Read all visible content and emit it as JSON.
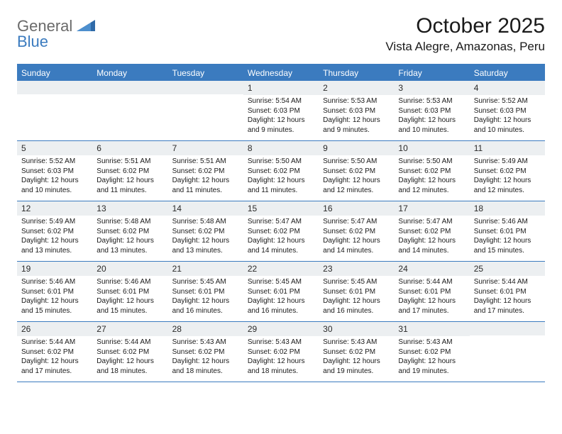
{
  "logo": {
    "general": "General",
    "blue": "Blue"
  },
  "title": "October 2025",
  "location": "Vista Alegre, Amazonas, Peru",
  "colors": {
    "brand_blue": "#3b7bbf",
    "header_gray": "#eceff1",
    "text": "#1a1a1a",
    "logo_gray": "#6a6a6a"
  },
  "weekdays": [
    "Sunday",
    "Monday",
    "Tuesday",
    "Wednesday",
    "Thursday",
    "Friday",
    "Saturday"
  ],
  "weeks": [
    [
      {
        "num": "",
        "lines": []
      },
      {
        "num": "",
        "lines": []
      },
      {
        "num": "",
        "lines": []
      },
      {
        "num": "1",
        "lines": [
          "Sunrise: 5:54 AM",
          "Sunset: 6:03 PM",
          "Daylight: 12 hours and 9 minutes."
        ]
      },
      {
        "num": "2",
        "lines": [
          "Sunrise: 5:53 AM",
          "Sunset: 6:03 PM",
          "Daylight: 12 hours and 9 minutes."
        ]
      },
      {
        "num": "3",
        "lines": [
          "Sunrise: 5:53 AM",
          "Sunset: 6:03 PM",
          "Daylight: 12 hours and 10 minutes."
        ]
      },
      {
        "num": "4",
        "lines": [
          "Sunrise: 5:52 AM",
          "Sunset: 6:03 PM",
          "Daylight: 12 hours and 10 minutes."
        ]
      }
    ],
    [
      {
        "num": "5",
        "lines": [
          "Sunrise: 5:52 AM",
          "Sunset: 6:03 PM",
          "Daylight: 12 hours and 10 minutes."
        ]
      },
      {
        "num": "6",
        "lines": [
          "Sunrise: 5:51 AM",
          "Sunset: 6:02 PM",
          "Daylight: 12 hours and 11 minutes."
        ]
      },
      {
        "num": "7",
        "lines": [
          "Sunrise: 5:51 AM",
          "Sunset: 6:02 PM",
          "Daylight: 12 hours and 11 minutes."
        ]
      },
      {
        "num": "8",
        "lines": [
          "Sunrise: 5:50 AM",
          "Sunset: 6:02 PM",
          "Daylight: 12 hours and 11 minutes."
        ]
      },
      {
        "num": "9",
        "lines": [
          "Sunrise: 5:50 AM",
          "Sunset: 6:02 PM",
          "Daylight: 12 hours and 12 minutes."
        ]
      },
      {
        "num": "10",
        "lines": [
          "Sunrise: 5:50 AM",
          "Sunset: 6:02 PM",
          "Daylight: 12 hours and 12 minutes."
        ]
      },
      {
        "num": "11",
        "lines": [
          "Sunrise: 5:49 AM",
          "Sunset: 6:02 PM",
          "Daylight: 12 hours and 12 minutes."
        ]
      }
    ],
    [
      {
        "num": "12",
        "lines": [
          "Sunrise: 5:49 AM",
          "Sunset: 6:02 PM",
          "Daylight: 12 hours and 13 minutes."
        ]
      },
      {
        "num": "13",
        "lines": [
          "Sunrise: 5:48 AM",
          "Sunset: 6:02 PM",
          "Daylight: 12 hours and 13 minutes."
        ]
      },
      {
        "num": "14",
        "lines": [
          "Sunrise: 5:48 AM",
          "Sunset: 6:02 PM",
          "Daylight: 12 hours and 13 minutes."
        ]
      },
      {
        "num": "15",
        "lines": [
          "Sunrise: 5:47 AM",
          "Sunset: 6:02 PM",
          "Daylight: 12 hours and 14 minutes."
        ]
      },
      {
        "num": "16",
        "lines": [
          "Sunrise: 5:47 AM",
          "Sunset: 6:02 PM",
          "Daylight: 12 hours and 14 minutes."
        ]
      },
      {
        "num": "17",
        "lines": [
          "Sunrise: 5:47 AM",
          "Sunset: 6:02 PM",
          "Daylight: 12 hours and 14 minutes."
        ]
      },
      {
        "num": "18",
        "lines": [
          "Sunrise: 5:46 AM",
          "Sunset: 6:01 PM",
          "Daylight: 12 hours and 15 minutes."
        ]
      }
    ],
    [
      {
        "num": "19",
        "lines": [
          "Sunrise: 5:46 AM",
          "Sunset: 6:01 PM",
          "Daylight: 12 hours and 15 minutes."
        ]
      },
      {
        "num": "20",
        "lines": [
          "Sunrise: 5:46 AM",
          "Sunset: 6:01 PM",
          "Daylight: 12 hours and 15 minutes."
        ]
      },
      {
        "num": "21",
        "lines": [
          "Sunrise: 5:45 AM",
          "Sunset: 6:01 PM",
          "Daylight: 12 hours and 16 minutes."
        ]
      },
      {
        "num": "22",
        "lines": [
          "Sunrise: 5:45 AM",
          "Sunset: 6:01 PM",
          "Daylight: 12 hours and 16 minutes."
        ]
      },
      {
        "num": "23",
        "lines": [
          "Sunrise: 5:45 AM",
          "Sunset: 6:01 PM",
          "Daylight: 12 hours and 16 minutes."
        ]
      },
      {
        "num": "24",
        "lines": [
          "Sunrise: 5:44 AM",
          "Sunset: 6:01 PM",
          "Daylight: 12 hours and 17 minutes."
        ]
      },
      {
        "num": "25",
        "lines": [
          "Sunrise: 5:44 AM",
          "Sunset: 6:01 PM",
          "Daylight: 12 hours and 17 minutes."
        ]
      }
    ],
    [
      {
        "num": "26",
        "lines": [
          "Sunrise: 5:44 AM",
          "Sunset: 6:02 PM",
          "Daylight: 12 hours and 17 minutes."
        ]
      },
      {
        "num": "27",
        "lines": [
          "Sunrise: 5:44 AM",
          "Sunset: 6:02 PM",
          "Daylight: 12 hours and 18 minutes."
        ]
      },
      {
        "num": "28",
        "lines": [
          "Sunrise: 5:43 AM",
          "Sunset: 6:02 PM",
          "Daylight: 12 hours and 18 minutes."
        ]
      },
      {
        "num": "29",
        "lines": [
          "Sunrise: 5:43 AM",
          "Sunset: 6:02 PM",
          "Daylight: 12 hours and 18 minutes."
        ]
      },
      {
        "num": "30",
        "lines": [
          "Sunrise: 5:43 AM",
          "Sunset: 6:02 PM",
          "Daylight: 12 hours and 19 minutes."
        ]
      },
      {
        "num": "31",
        "lines": [
          "Sunrise: 5:43 AM",
          "Sunset: 6:02 PM",
          "Daylight: 12 hours and 19 minutes."
        ]
      },
      {
        "num": "",
        "lines": []
      }
    ]
  ]
}
